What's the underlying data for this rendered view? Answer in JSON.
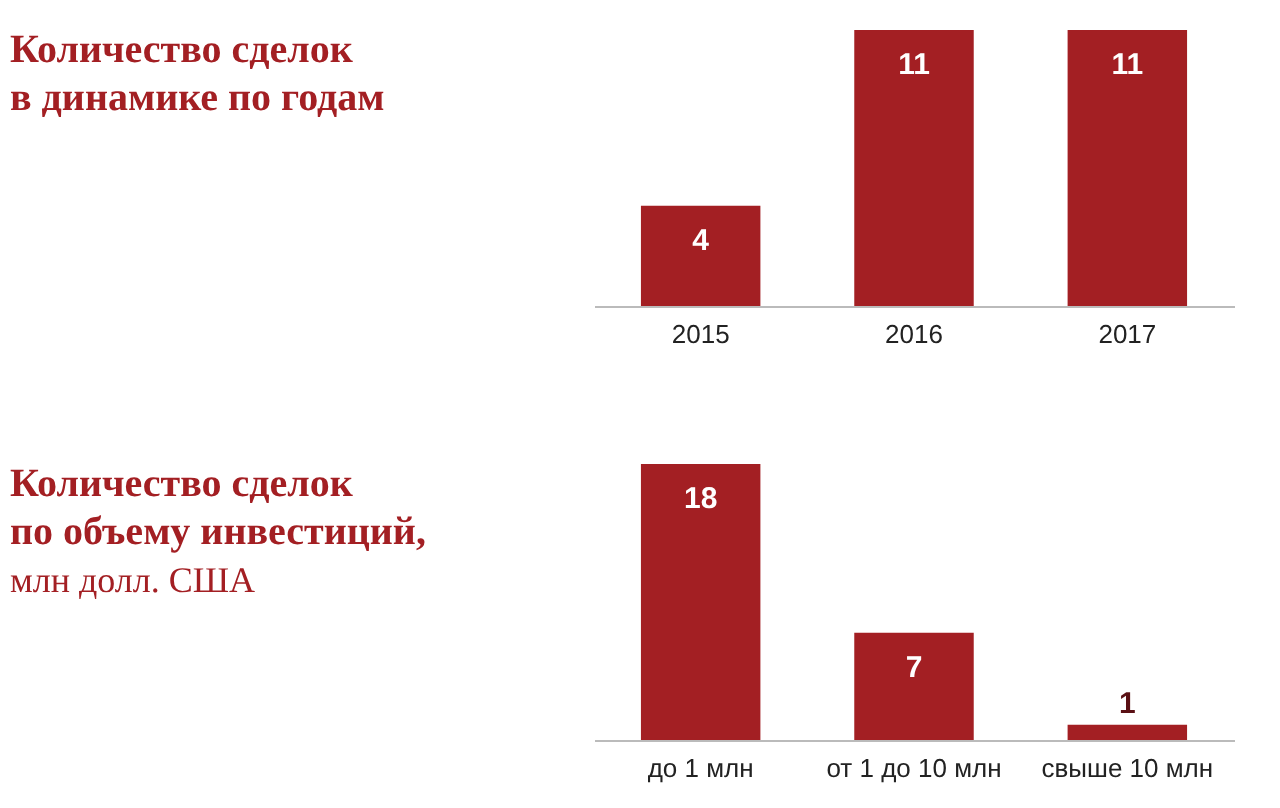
{
  "chart_data": [
    {
      "type": "bar",
      "title": "Количество сделок\nв динамике по годам",
      "categories": [
        "2015",
        "2016",
        "2017"
      ],
      "values": [
        4,
        11,
        11
      ],
      "color": "#a31f23",
      "data_labels": true,
      "tick_labels": "x",
      "grid": false
    },
    {
      "type": "bar",
      "title": "Количество сделок\nпо объему инвестиций,",
      "annotations": [
        "млн долл. США"
      ],
      "categories": [
        "до 1 млн",
        "от 1 до 10 млн",
        "свыше 10 млн"
      ],
      "values": [
        18,
        7,
        1
      ],
      "color": "#a31f23",
      "data_labels": true,
      "tick_labels": "x",
      "grid": false
    }
  ]
}
